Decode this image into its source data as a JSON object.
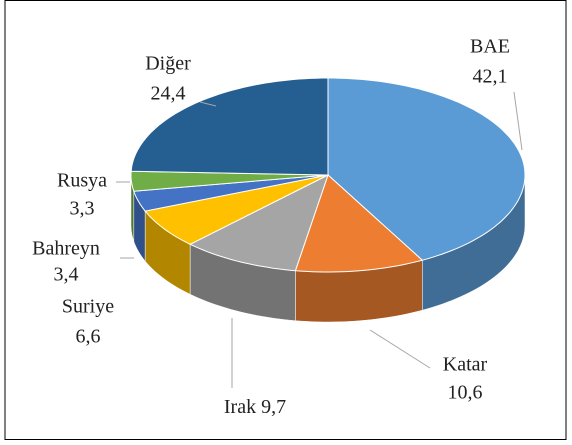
{
  "chart_data": {
    "type": "pie3d",
    "categories": [
      "BAE",
      "Katar",
      "Irak",
      "Suriye",
      "Bahreyn",
      "Rusya",
      "Diğer"
    ],
    "values": [
      42.1,
      10.6,
      9.7,
      6.6,
      3.4,
      3.3,
      24.4
    ],
    "value_labels": [
      "42,1",
      "10,6",
      "9,7",
      "6,6",
      "3,4",
      "3,3",
      "24,4"
    ],
    "colors": [
      "#5b9bd5",
      "#ed7d31",
      "#a5a5a5",
      "#ffc000",
      "#4472c4",
      "#70ad47",
      "#255e91"
    ]
  }
}
